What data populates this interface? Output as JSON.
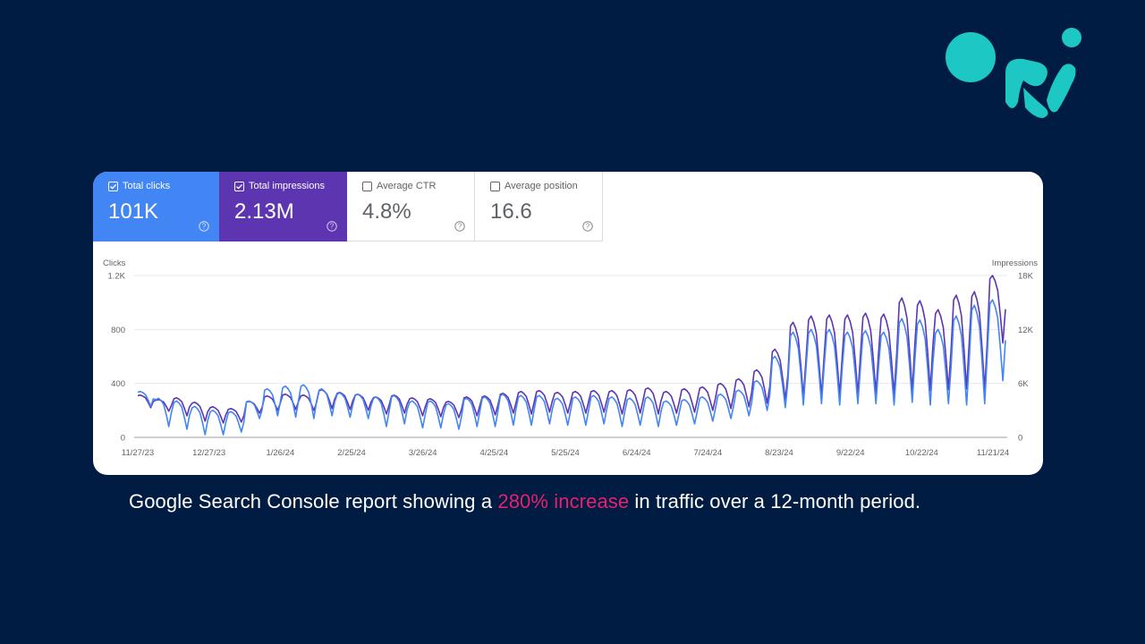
{
  "colors": {
    "background": "#001c42",
    "clicks": "#4285f4",
    "impressions": "#5e35b1",
    "highlight": "#e8216e",
    "logo": "#1cc7c4"
  },
  "metrics": [
    {
      "label": "Total clicks",
      "value": "101K",
      "checked": true
    },
    {
      "label": "Total impressions",
      "value": "2.13M",
      "checked": true
    },
    {
      "label": "Average CTR",
      "value": "4.8%",
      "checked": false
    },
    {
      "label": "Average position",
      "value": "16.6",
      "checked": false
    }
  ],
  "chart_data": {
    "type": "line",
    "left_axis": {
      "label": "Clicks",
      "ticks": [
        "0",
        "400",
        "800",
        "1.2K"
      ],
      "ylim": [
        0,
        1200
      ]
    },
    "right_axis": {
      "label": "Impressions",
      "ticks": [
        "0",
        "6K",
        "12K",
        "18K"
      ],
      "ylim": [
        0,
        18000
      ]
    },
    "x_tick_labels": [
      "11/27/23",
      "12/27/23",
      "1/26/24",
      "2/25/24",
      "3/26/24",
      "4/25/24",
      "5/25/24",
      "6/24/24",
      "7/24/24",
      "8/23/24",
      "9/22/24",
      "10/22/24",
      "11/21/24"
    ],
    "series": [
      {
        "name": "Impressions",
        "axis": "right",
        "weekly": {
          "peaks": [
            4700,
            4200,
            4400,
            3900,
            3400,
            3200,
            4000,
            4600,
            4800,
            4700,
            5300,
            5000,
            4800,
            4500,
            4700,
            4400,
            4300,
            4000,
            4500,
            4600,
            4900,
            5100,
            5200,
            5000,
            5100,
            5200,
            5200,
            5300,
            5500,
            5100,
            5400,
            5600,
            6000,
            6500,
            7500,
            9800,
            12800,
            13500,
            13600,
            13600,
            13800,
            13700,
            15500,
            15200,
            14200,
            15800,
            16200,
            18000
          ],
          "troughs": [
            3300,
            2900,
            2400,
            1800,
            1600,
            1700,
            2700,
            3000,
            3100,
            3000,
            3200,
            3100,
            3000,
            2600,
            2700,
            2400,
            2300,
            2200,
            2400,
            2500,
            2700,
            2600,
            2800,
            2700,
            2700,
            2800,
            2600,
            2700,
            2600,
            2700,
            2800,
            3000,
            3200,
            3400,
            3800,
            4200,
            4500,
            4600,
            4700,
            4800,
            4900,
            4800,
            5100,
            5200,
            5300,
            5400,
            5300,
            10500
          ]
        }
      },
      {
        "name": "Clicks",
        "axis": "left",
        "weekly": {
          "peaks": [
            340,
            290,
            270,
            230,
            200,
            190,
            270,
            360,
            380,
            390,
            360,
            330,
            320,
            300,
            310,
            270,
            270,
            250,
            290,
            300,
            320,
            310,
            310,
            290,
            300,
            310,
            300,
            290,
            300,
            270,
            280,
            300,
            320,
            350,
            420,
            600,
            780,
            800,
            800,
            780,
            790,
            780,
            880,
            870,
            800,
            900,
            980,
            1020
          ],
          "troughs": [
            230,
            80,
            60,
            20,
            20,
            40,
            140,
            160,
            150,
            140,
            160,
            150,
            140,
            80,
            100,
            70,
            70,
            60,
            80,
            80,
            90,
            90,
            100,
            90,
            90,
            100,
            80,
            90,
            80,
            90,
            100,
            120,
            140,
            160,
            200,
            220,
            240,
            250,
            240,
            250,
            250,
            240,
            260,
            240,
            250,
            240,
            250,
            420
          ]
        }
      }
    ]
  },
  "caption": {
    "before": "Google Search Console report showing a ",
    "highlight": "280% increase",
    "after": " in traffic over a 12-month period."
  }
}
